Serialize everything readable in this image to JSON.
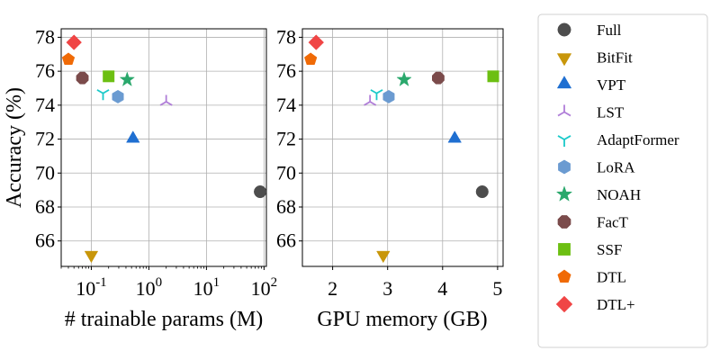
{
  "chart_data": [
    {
      "type": "scatter",
      "xscale": "log",
      "xlabel": "# trainable params (M)",
      "ylabel": "Accuracy (%)",
      "xlim": [
        0.03,
        110
      ],
      "ylim": [
        64.5,
        78.5
      ],
      "yticks": [
        66,
        68,
        70,
        72,
        74,
        76,
        78
      ],
      "xticks": [
        {
          "value": 0.1,
          "label": "10",
          "exp": "-1"
        },
        {
          "value": 1,
          "label": "10",
          "exp": "0"
        },
        {
          "value": 10,
          "label": "10",
          "exp": "1"
        },
        {
          "value": 100,
          "label": "10",
          "exp": "2"
        }
      ],
      "grid": true,
      "points": [
        {
          "method": "Full",
          "x": 85.8,
          "y": 68.9
        },
        {
          "method": "BitFit",
          "x": 0.1,
          "y": 65.2
        },
        {
          "method": "VPT",
          "x": 0.53,
          "y": 72.0
        },
        {
          "method": "LST",
          "x": 2.0,
          "y": 74.2
        },
        {
          "method": "AdaptFormer",
          "x": 0.16,
          "y": 74.7
        },
        {
          "method": "LoRA",
          "x": 0.29,
          "y": 74.5
        },
        {
          "method": "NOAH",
          "x": 0.42,
          "y": 75.5
        },
        {
          "method": "FacT",
          "x": 0.07,
          "y": 75.6
        },
        {
          "method": "SSF",
          "x": 0.2,
          "y": 75.7
        },
        {
          "method": "DTL",
          "x": 0.04,
          "y": 76.7
        },
        {
          "method": "DTL+",
          "x": 0.05,
          "y": 77.7
        }
      ]
    },
    {
      "type": "scatter",
      "xscale": "linear",
      "xlabel": "GPU memory (GB)",
      "ylabel": "",
      "xlim": [
        1.45,
        5.1
      ],
      "ylim": [
        64.5,
        78.5
      ],
      "yticks": [
        66,
        68,
        70,
        72,
        74,
        76,
        78
      ],
      "xticks": [
        2,
        3,
        4,
        5
      ],
      "grid": true,
      "points": [
        {
          "method": "Full",
          "x": 4.72,
          "y": 68.9
        },
        {
          "method": "BitFit",
          "x": 2.92,
          "y": 65.2
        },
        {
          "method": "VPT",
          "x": 4.22,
          "y": 72.0
        },
        {
          "method": "LST",
          "x": 2.68,
          "y": 74.2
        },
        {
          "method": "AdaptFormer",
          "x": 2.8,
          "y": 74.7
        },
        {
          "method": "LoRA",
          "x": 3.02,
          "y": 74.5
        },
        {
          "method": "NOAH",
          "x": 3.3,
          "y": 75.5
        },
        {
          "method": "FacT",
          "x": 3.92,
          "y": 75.6
        },
        {
          "method": "SSF",
          "x": 4.92,
          "y": 75.7
        },
        {
          "method": "DTL",
          "x": 1.6,
          "y": 76.7
        },
        {
          "method": "DTL+",
          "x": 1.7,
          "y": 77.7
        }
      ]
    }
  ],
  "legend": {
    "placement": "right",
    "entries": [
      {
        "label": "Full",
        "marker": "circle",
        "color": "#4d4d4d"
      },
      {
        "label": "BitFit",
        "marker": "triangle-down",
        "color": "#c8960a"
      },
      {
        "label": "VPT",
        "marker": "triangle-up",
        "color": "#1f6fd1"
      },
      {
        "label": "LST",
        "marker": "tri-down",
        "color": "#b07ed8"
      },
      {
        "label": "AdaptFormer",
        "marker": "tri-up",
        "color": "#19c9c9"
      },
      {
        "label": "LoRA",
        "marker": "hexagon",
        "color": "#6b9bd1"
      },
      {
        "label": "NOAH",
        "marker": "star",
        "color": "#2aa86c"
      },
      {
        "label": "FacT",
        "marker": "octagon",
        "color": "#7b4b4b"
      },
      {
        "label": "SSF",
        "marker": "square",
        "color": "#6cbf12"
      },
      {
        "label": "DTL",
        "marker": "pentagon",
        "color": "#f06a06"
      },
      {
        "label": "DTL+",
        "marker": "diamond",
        "color": "#f04545"
      }
    ]
  }
}
